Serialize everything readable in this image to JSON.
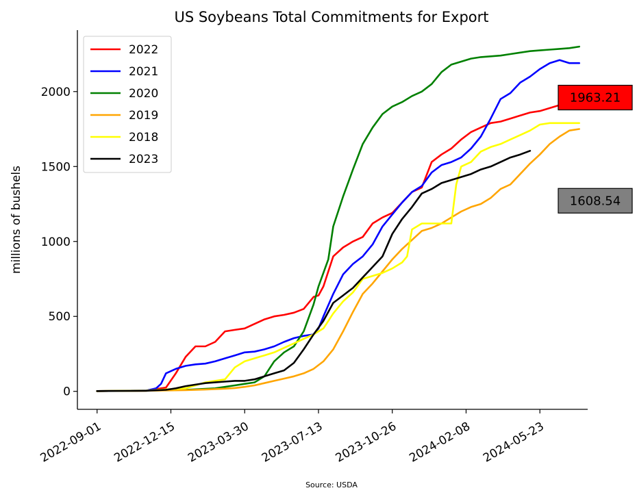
{
  "chart_data": {
    "type": "line",
    "title": "US Soybeans Total Commitments for Export",
    "xlabel": "",
    "ylabel": "millions of bushels",
    "source": "Source: USDA",
    "x_tick_labels": [
      "2022-09-01",
      "2022-12-15",
      "2023-03-30",
      "2023-07-13",
      "2023-10-26",
      "2024-02-08",
      "2024-05-23"
    ],
    "x_range": [
      "2022-08-04",
      "2024-07-30"
    ],
    "ylim": [
      -120,
      2410
    ],
    "y_ticks": [
      0,
      500,
      1000,
      1500,
      2000
    ],
    "y_tick_labels": [
      "0",
      "500",
      "1000",
      "1500",
      "2000"
    ],
    "grid": false,
    "legend_position": "top-left",
    "callouts": [
      {
        "text": "1963.21",
        "series": "2022",
        "bg": "#ff0000"
      },
      {
        "text": "1608.54",
        "series": "2023",
        "bg": "#808080"
      }
    ],
    "series": [
      {
        "name": "2022",
        "color": "#ff0000",
        "x": [
          "2022-09-01",
          "2022-11-10",
          "2022-12-08",
          "2022-12-22",
          "2023-01-05",
          "2023-01-19",
          "2023-02-02",
          "2023-02-16",
          "2023-03-02",
          "2023-03-16",
          "2023-03-30",
          "2023-04-13",
          "2023-04-27",
          "2023-05-11",
          "2023-05-25",
          "2023-06-08",
          "2023-06-22",
          "2023-07-06",
          "2023-07-13",
          "2023-07-20",
          "2023-08-03",
          "2023-08-17",
          "2023-08-31",
          "2023-09-14",
          "2023-09-28",
          "2023-10-12",
          "2023-10-26",
          "2023-11-09",
          "2023-11-23",
          "2023-12-07",
          "2023-12-21",
          "2024-01-04",
          "2024-01-18",
          "2024-02-01",
          "2024-02-15",
          "2024-02-29",
          "2024-03-14",
          "2024-03-28",
          "2024-04-11",
          "2024-04-25",
          "2024-05-09",
          "2024-05-23",
          "2024-06-06",
          "2024-06-20",
          "2024-07-04",
          "2024-07-18"
        ],
        "values": [
          2,
          4,
          25,
          120,
          230,
          300,
          300,
          330,
          400,
          410,
          420,
          450,
          480,
          500,
          510,
          525,
          550,
          630,
          640,
          700,
          900,
          960,
          1000,
          1030,
          1120,
          1160,
          1190,
          1260,
          1330,
          1360,
          1530,
          1580,
          1620,
          1680,
          1730,
          1760,
          1790,
          1800,
          1820,
          1840,
          1860,
          1870,
          1890,
          1910,
          1930,
          1960
        ]
      },
      {
        "name": "2021",
        "color": "#0000ff",
        "x": [
          "2022-09-01",
          "2022-11-10",
          "2022-11-24",
          "2022-12-01",
          "2022-12-08",
          "2022-12-22",
          "2023-01-05",
          "2023-01-19",
          "2023-02-02",
          "2023-02-16",
          "2023-03-02",
          "2023-03-16",
          "2023-03-30",
          "2023-04-13",
          "2023-04-27",
          "2023-05-11",
          "2023-05-25",
          "2023-06-08",
          "2023-06-22",
          "2023-07-06",
          "2023-07-13",
          "2023-07-20",
          "2023-08-03",
          "2023-08-17",
          "2023-08-31",
          "2023-09-14",
          "2023-09-28",
          "2023-10-12",
          "2023-10-26",
          "2023-11-09",
          "2023-11-23",
          "2023-12-07",
          "2023-12-21",
          "2024-01-04",
          "2024-01-18",
          "2024-02-01",
          "2024-02-15",
          "2024-02-29",
          "2024-03-14",
          "2024-03-28",
          "2024-04-11",
          "2024-04-25",
          "2024-05-09",
          "2024-05-23",
          "2024-06-06",
          "2024-06-20",
          "2024-07-04",
          "2024-07-18"
        ],
        "values": [
          2,
          5,
          20,
          50,
          120,
          150,
          170,
          180,
          185,
          200,
          220,
          240,
          260,
          265,
          280,
          300,
          330,
          355,
          370,
          380,
          420,
          500,
          650,
          780,
          850,
          900,
          980,
          1100,
          1180,
          1260,
          1330,
          1370,
          1460,
          1510,
          1530,
          1560,
          1620,
          1700,
          1820,
          1950,
          1990,
          2060,
          2100,
          2150,
          2190,
          2210,
          2190,
          2190
        ]
      },
      {
        "name": "2020",
        "color": "#008000",
        "x": [
          "2022-09-01",
          "2022-11-10",
          "2023-01-05",
          "2023-02-16",
          "2023-03-02",
          "2023-03-16",
          "2023-03-30",
          "2023-04-13",
          "2023-04-27",
          "2023-05-11",
          "2023-05-25",
          "2023-06-08",
          "2023-06-22",
          "2023-07-06",
          "2023-07-13",
          "2023-07-27",
          "2023-08-03",
          "2023-08-17",
          "2023-08-31",
          "2023-09-14",
          "2023-09-28",
          "2023-10-12",
          "2023-10-26",
          "2023-11-09",
          "2023-11-23",
          "2023-12-07",
          "2023-12-21",
          "2024-01-04",
          "2024-01-18",
          "2024-02-01",
          "2024-02-15",
          "2024-02-29",
          "2024-03-14",
          "2024-03-28",
          "2024-04-11",
          "2024-04-25",
          "2024-05-09",
          "2024-05-23",
          "2024-06-06",
          "2024-06-20",
          "2024-07-04",
          "2024-07-18"
        ],
        "values": [
          2,
          4,
          10,
          20,
          30,
          40,
          50,
          60,
          100,
          200,
          260,
          300,
          400,
          580,
          700,
          880,
          1100,
          1300,
          1480,
          1650,
          1760,
          1850,
          1900,
          1930,
          1970,
          2000,
          2050,
          2130,
          2180,
          2200,
          2220,
          2230,
          2235,
          2240,
          2250,
          2260,
          2270,
          2275,
          2280,
          2285,
          2290,
          2300
        ]
      },
      {
        "name": "2019",
        "color": "#ffa500",
        "x": [
          "2022-09-01",
          "2022-11-10",
          "2023-01-05",
          "2023-02-02",
          "2023-03-02",
          "2023-03-16",
          "2023-03-30",
          "2023-04-13",
          "2023-04-27",
          "2023-05-11",
          "2023-05-25",
          "2023-06-08",
          "2023-06-22",
          "2023-07-06",
          "2023-07-20",
          "2023-08-03",
          "2023-08-17",
          "2023-08-31",
          "2023-09-14",
          "2023-09-28",
          "2023-10-12",
          "2023-10-26",
          "2023-11-09",
          "2023-11-23",
          "2023-12-07",
          "2023-12-21",
          "2024-01-04",
          "2024-01-18",
          "2024-02-01",
          "2024-02-15",
          "2024-02-29",
          "2024-03-14",
          "2024-03-28",
          "2024-04-11",
          "2024-04-25",
          "2024-05-09",
          "2024-05-23",
          "2024-06-06",
          "2024-06-20",
          "2024-07-04",
          "2024-07-18"
        ],
        "values": [
          2,
          4,
          8,
          12,
          18,
          22,
          30,
          40,
          55,
          70,
          85,
          100,
          120,
          150,
          200,
          280,
          400,
          530,
          650,
          720,
          800,
          880,
          950,
          1010,
          1070,
          1090,
          1120,
          1160,
          1200,
          1230,
          1250,
          1290,
          1350,
          1380,
          1450,
          1520,
          1580,
          1650,
          1700,
          1740,
          1750
        ]
      },
      {
        "name": "2018",
        "color": "#ffff00",
        "x": [
          "2022-09-01",
          "2022-11-10",
          "2023-01-05",
          "2023-01-19",
          "2023-02-02",
          "2023-02-16",
          "2023-03-02",
          "2023-03-16",
          "2023-03-30",
          "2023-04-13",
          "2023-04-27",
          "2023-05-11",
          "2023-05-25",
          "2023-06-08",
          "2023-06-22",
          "2023-07-06",
          "2023-07-20",
          "2023-08-03",
          "2023-08-17",
          "2023-08-31",
          "2023-09-14",
          "2023-09-28",
          "2023-10-12",
          "2023-10-26",
          "2023-11-09",
          "2023-11-16",
          "2023-11-23",
          "2023-12-07",
          "2023-12-21",
          "2024-01-04",
          "2024-01-18",
          "2024-01-25",
          "2024-02-01",
          "2024-02-15",
          "2024-02-29",
          "2024-03-14",
          "2024-03-28",
          "2024-04-11",
          "2024-04-25",
          "2024-05-09",
          "2024-05-23",
          "2024-06-06",
          "2024-06-20",
          "2024-07-04",
          "2024-07-18"
        ],
        "values": [
          2,
          5,
          20,
          40,
          60,
          70,
          80,
          160,
          200,
          220,
          240,
          260,
          290,
          320,
          350,
          380,
          420,
          520,
          600,
          660,
          750,
          770,
          790,
          820,
          860,
          900,
          1080,
          1120,
          1120,
          1120,
          1120,
          1380,
          1500,
          1530,
          1600,
          1630,
          1650,
          1680,
          1710,
          1740,
          1780,
          1790,
          1790,
          1790,
          1790
        ]
      },
      {
        "name": "2023",
        "color": "#000000",
        "x": [
          "2022-09-01",
          "2022-11-10",
          "2022-12-08",
          "2022-12-22",
          "2023-01-05",
          "2023-01-19",
          "2023-02-02",
          "2023-02-16",
          "2023-03-02",
          "2023-03-16",
          "2023-03-30",
          "2023-04-13",
          "2023-04-27",
          "2023-05-11",
          "2023-05-25",
          "2023-06-08",
          "2023-06-22",
          "2023-07-06",
          "2023-07-20",
          "2023-08-03",
          "2023-08-17",
          "2023-08-31",
          "2023-09-14",
          "2023-09-28",
          "2023-10-12",
          "2023-10-26",
          "2023-11-09",
          "2023-11-23",
          "2023-12-07",
          "2023-12-21",
          "2024-01-04",
          "2024-01-18",
          "2024-02-01",
          "2024-02-15",
          "2024-02-29",
          "2024-03-14",
          "2024-03-28",
          "2024-04-11",
          "2024-04-25",
          "2024-05-09"
        ],
        "values": [
          2,
          4,
          10,
          20,
          35,
          45,
          55,
          60,
          65,
          70,
          70,
          80,
          100,
          120,
          140,
          190,
          280,
          380,
          470,
          590,
          640,
          690,
          760,
          830,
          900,
          1050,
          1150,
          1230,
          1320,
          1350,
          1390,
          1410,
          1430,
          1450,
          1480,
          1500,
          1530,
          1560,
          1580,
          1605
        ]
      }
    ]
  }
}
